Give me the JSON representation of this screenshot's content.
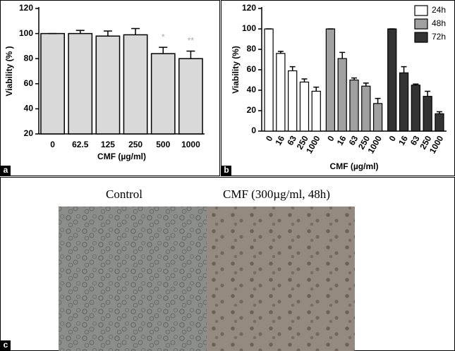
{
  "chart_data": [
    {
      "type": "bar",
      "panel_label": "a",
      "ylabel": "Viability (% )",
      "xlabel": "CMF (µg/ml)",
      "categories": [
        "0",
        "62.5",
        "125",
        "250",
        "500",
        "1000"
      ],
      "values": [
        100,
        100,
        98,
        99,
        84,
        80
      ],
      "errors": [
        0,
        2.5,
        4,
        5,
        5,
        6
      ],
      "significance": [
        null,
        null,
        null,
        null,
        "*",
        "**"
      ],
      "color": "#d9d9d9",
      "ylim": [
        20,
        120
      ],
      "yticks": [
        20,
        40,
        60,
        80,
        100,
        120
      ]
    },
    {
      "type": "grouped-bar",
      "panel_label": "b",
      "ylabel": "Viability (%)",
      "xlabel": "CMF (µg/ml)",
      "categories": [
        "0",
        "16",
        "63",
        "250",
        "1000"
      ],
      "series": [
        {
          "name": "24h",
          "color": "#ffffff",
          "values": [
            100,
            76,
            59,
            48,
            39
          ],
          "errors": [
            0,
            2,
            4,
            3,
            4
          ]
        },
        {
          "name": "48h",
          "color": "#a0a0a0",
          "values": [
            100,
            71,
            50,
            44,
            27
          ],
          "errors": [
            0,
            6,
            2,
            3,
            5
          ]
        },
        {
          "name": "72h",
          "color": "#333333",
          "values": [
            100,
            57,
            45,
            34,
            17
          ],
          "errors": [
            0,
            6,
            1,
            5,
            2
          ]
        }
      ],
      "legend": "upper right",
      "ylim": [
        0,
        120
      ],
      "yticks": [
        0,
        20,
        40,
        60,
        80,
        100,
        120
      ]
    }
  ],
  "panel_c": {
    "label": "c",
    "captions": [
      "Control",
      "CMF (300µg/ml, 48h)"
    ]
  }
}
